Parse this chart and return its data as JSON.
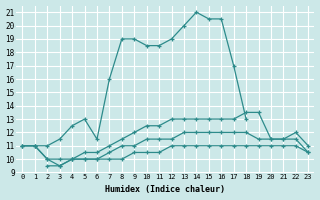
{
  "xlabel": "Humidex (Indice chaleur)",
  "ylabel": "",
  "bg_color": "#cce8e8",
  "grid_color": "#ffffff",
  "line_color": "#2d8b8b",
  "xlim": [
    -0.5,
    23.5
  ],
  "ylim": [
    9,
    21.5
  ],
  "xticks": [
    0,
    1,
    2,
    3,
    4,
    5,
    6,
    7,
    8,
    9,
    10,
    11,
    12,
    13,
    14,
    15,
    16,
    17,
    18,
    19,
    20,
    21,
    22,
    23
  ],
  "yticks": [
    9,
    10,
    11,
    12,
    13,
    14,
    15,
    16,
    17,
    18,
    19,
    20,
    21
  ],
  "series": [
    {
      "x": [
        0,
        1,
        2,
        3,
        4,
        5,
        6,
        7,
        8,
        9,
        10,
        11,
        12,
        13,
        14,
        15,
        16,
        17,
        18
      ],
      "y": [
        11,
        11,
        11,
        11.5,
        12.5,
        13,
        11.5,
        16,
        19,
        19,
        18.5,
        18.5,
        19,
        20,
        21,
        20.5,
        20.5,
        17,
        13
      ]
    },
    {
      "x": [
        0,
        1,
        2,
        3,
        4,
        5,
        6,
        7,
        8,
        9,
        10,
        11,
        12,
        13,
        14,
        15,
        16,
        17,
        18,
        19,
        20,
        21,
        22,
        23
      ],
      "y": [
        11,
        11,
        10,
        10,
        10,
        10.5,
        10.5,
        11,
        11.5,
        12,
        12.5,
        12.5,
        13,
        13,
        13,
        13,
        13,
        13,
        13.5,
        13.5,
        11.5,
        11.5,
        12,
        11
      ]
    },
    {
      "x": [
        0,
        1,
        2,
        3,
        4,
        5,
        6,
        7,
        8,
        9,
        10,
        11,
        12,
        13,
        14,
        15,
        16,
        17,
        18,
        19,
        20,
        21,
        22,
        23
      ],
      "y": [
        11,
        11,
        10,
        9.5,
        10,
        10,
        10,
        10.5,
        11,
        11,
        11.5,
        11.5,
        11.5,
        12,
        12,
        12,
        12,
        12,
        12,
        11.5,
        11.5,
        11.5,
        11.5,
        10.5
      ]
    },
    {
      "x": [
        2,
        3,
        4,
        5,
        6,
        7,
        8,
        9,
        10,
        11,
        12,
        13,
        14,
        15,
        16,
        17,
        18,
        19,
        20,
        21,
        22,
        23
      ],
      "y": [
        9.5,
        9.5,
        10,
        10,
        10,
        10,
        10,
        10.5,
        10.5,
        10.5,
        11,
        11,
        11,
        11,
        11,
        11,
        11,
        11,
        11,
        11,
        11,
        10.5
      ]
    }
  ]
}
